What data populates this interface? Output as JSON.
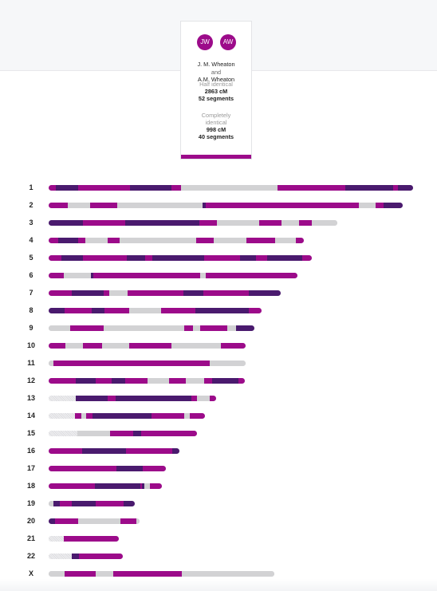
{
  "comparison": {
    "avatar_left": "JW",
    "avatar_right": "AW",
    "name_1": "J. M. Wheaton",
    "and_label": "and",
    "name_2": "A.M. Wheaton",
    "half_identical_label": "Half identical",
    "half_identical_cm": "2863 cM",
    "half_identical_segments": "52 segments",
    "completely_identical_label_line1": "Completely",
    "completely_identical_label_line2": "identical",
    "completely_identical_cm": "998 cM",
    "completely_identical_segments": "40 segments"
  },
  "colors": {
    "half_identical": "#9c0b8a",
    "completely_identical": "#4a1a6e",
    "not_identical": "#d2d2d4",
    "no_data": "#e4e4e6"
  },
  "chromosomes": [
    {
      "label": "1",
      "length": 457,
      "segments": [
        [
          "p",
          0,
          9
        ],
        [
          "d",
          9,
          37
        ],
        [
          "p",
          37,
          102
        ],
        [
          "d",
          102,
          154
        ],
        [
          "p",
          154,
          166
        ],
        [
          "g",
          166,
          287
        ],
        [
          "p",
          287,
          372
        ],
        [
          "d",
          372,
          432
        ],
        [
          "p",
          432,
          438
        ],
        [
          "d",
          438,
          457
        ]
      ]
    },
    {
      "label": "2",
      "length": 444,
      "segments": [
        [
          "p",
          0,
          24
        ],
        [
          "g",
          24,
          52
        ],
        [
          "p",
          52,
          86
        ],
        [
          "g",
          86,
          193
        ],
        [
          "d",
          193,
          197
        ],
        [
          "p",
          197,
          256
        ],
        [
          "p",
          256,
          389
        ],
        [
          "g",
          389,
          410
        ],
        [
          "p",
          410,
          420
        ],
        [
          "d",
          420,
          444
        ]
      ]
    },
    {
      "label": "3",
      "length": 362,
      "segments": [
        [
          "d",
          0,
          43
        ],
        [
          "p",
          43,
          96
        ],
        [
          "d",
          96,
          110
        ],
        [
          "d",
          110,
          189
        ],
        [
          "p",
          189,
          211
        ],
        [
          "g",
          211,
          264
        ],
        [
          "p",
          264,
          292
        ],
        [
          "g",
          292,
          314
        ],
        [
          "p",
          314,
          330
        ],
        [
          "g",
          330,
          362
        ]
      ]
    },
    {
      "label": "4",
      "length": 320,
      "segments": [
        [
          "p",
          0,
          12
        ],
        [
          "d",
          12,
          37
        ],
        [
          "p",
          37,
          46
        ],
        [
          "g",
          46,
          74
        ],
        [
          "p",
          74,
          89
        ],
        [
          "g",
          89,
          185
        ],
        [
          "p",
          185,
          207
        ],
        [
          "g",
          207,
          248
        ],
        [
          "p",
          248,
          284
        ],
        [
          "g",
          284,
          310
        ],
        [
          "p",
          310,
          320
        ]
      ]
    },
    {
      "label": "5",
      "length": 330,
      "segments": [
        [
          "p",
          0,
          16
        ],
        [
          "d",
          16,
          43
        ],
        [
          "p",
          43,
          98
        ],
        [
          "d",
          98,
          121
        ],
        [
          "p",
          121,
          130
        ],
        [
          "d",
          130,
          195
        ],
        [
          "p",
          195,
          240
        ],
        [
          "d",
          240,
          260
        ],
        [
          "p",
          260,
          274
        ],
        [
          "d",
          274,
          318
        ],
        [
          "p",
          318,
          330
        ]
      ]
    },
    {
      "label": "6",
      "length": 312,
      "segments": [
        [
          "p",
          0,
          19
        ],
        [
          "g",
          19,
          53
        ],
        [
          "d",
          53,
          56
        ],
        [
          "p",
          56,
          190
        ],
        [
          "g",
          190,
          197
        ],
        [
          "p",
          197,
          312
        ]
      ]
    },
    {
      "label": "7",
      "length": 291,
      "segments": [
        [
          "p",
          0,
          29
        ],
        [
          "d",
          29,
          69
        ],
        [
          "p",
          69,
          76
        ],
        [
          "g",
          76,
          99
        ],
        [
          "p",
          99,
          169
        ],
        [
          "d",
          169,
          194
        ],
        [
          "p",
          194,
          251
        ],
        [
          "d",
          251,
          291
        ]
      ]
    },
    {
      "label": "8",
      "length": 267,
      "segments": [
        [
          "d",
          0,
          20
        ],
        [
          "p",
          20,
          54
        ],
        [
          "d",
          54,
          70
        ],
        [
          "p",
          70,
          101
        ],
        [
          "g",
          101,
          141
        ],
        [
          "p",
          141,
          184
        ],
        [
          "d",
          184,
          251
        ],
        [
          "p",
          251,
          267
        ]
      ]
    },
    {
      "label": "9",
      "length": 258,
      "segments": [
        [
          "g",
          0,
          27
        ],
        [
          "p",
          27,
          69
        ],
        [
          "g",
          69,
          170
        ],
        [
          "p",
          170,
          181
        ],
        [
          "g",
          181,
          190
        ],
        [
          "p",
          190,
          224
        ],
        [
          "g",
          224,
          235
        ],
        [
          "d",
          235,
          258
        ]
      ]
    },
    {
      "label": "10",
      "length": 247,
      "segments": [
        [
          "p",
          0,
          21
        ],
        [
          "g",
          21,
          43
        ],
        [
          "p",
          43,
          67
        ],
        [
          "g",
          67,
          101
        ],
        [
          "p",
          101,
          154
        ],
        [
          "g",
          154,
          216
        ],
        [
          "p",
          216,
          247
        ]
      ]
    },
    {
      "label": "11",
      "length": 247,
      "segments": [
        [
          "g",
          0,
          6
        ],
        [
          "p",
          6,
          202
        ],
        [
          "g",
          202,
          247
        ]
      ]
    },
    {
      "label": "12",
      "length": 246,
      "segments": [
        [
          "p",
          0,
          34
        ],
        [
          "d",
          34,
          59
        ],
        [
          "p",
          59,
          79
        ],
        [
          "d",
          79,
          96
        ],
        [
          "p",
          96,
          124
        ],
        [
          "g",
          124,
          151
        ],
        [
          "p",
          151,
          172
        ],
        [
          "g",
          172,
          195
        ],
        [
          "p",
          195,
          205
        ],
        [
          "d",
          205,
          238
        ],
        [
          "p",
          238,
          246
        ]
      ]
    },
    {
      "label": "13",
      "length": 210,
      "segments": [
        [
          "h",
          0,
          34
        ],
        [
          "d",
          34,
          74
        ],
        [
          "p",
          74,
          84
        ],
        [
          "d",
          84,
          179
        ],
        [
          "p",
          179,
          186
        ],
        [
          "g",
          186,
          202
        ],
        [
          "p",
          202,
          210
        ]
      ]
    },
    {
      "label": "14",
      "length": 196,
      "segments": [
        [
          "h",
          0,
          33
        ],
        [
          "p",
          33,
          41
        ],
        [
          "g",
          41,
          47
        ],
        [
          "p",
          47,
          55
        ],
        [
          "d",
          55,
          129
        ],
        [
          "p",
          129,
          170
        ],
        [
          "g",
          170,
          177
        ],
        [
          "p",
          177,
          196
        ]
      ]
    },
    {
      "label": "15",
      "length": 186,
      "segments": [
        [
          "h",
          0,
          36
        ],
        [
          "g",
          36,
          77
        ],
        [
          "p",
          77,
          106
        ],
        [
          "d",
          106,
          116
        ],
        [
          "p",
          116,
          186
        ]
      ]
    },
    {
      "label": "16",
      "length": 164,
      "segments": [
        [
          "p",
          0,
          42
        ],
        [
          "d",
          42,
          97
        ],
        [
          "p",
          97,
          155
        ],
        [
          "d",
          155,
          164
        ]
      ]
    },
    {
      "label": "17",
      "length": 147,
      "segments": [
        [
          "p",
          0,
          85
        ],
        [
          "d",
          85,
          118
        ],
        [
          "p",
          118,
          147
        ]
      ]
    },
    {
      "label": "18",
      "length": 142,
      "segments": [
        [
          "p",
          0,
          58
        ],
        [
          "d",
          58,
          115
        ],
        [
          "p",
          115,
          117
        ],
        [
          "d",
          117,
          120
        ],
        [
          "g",
          120,
          127
        ],
        [
          "p",
          127,
          142
        ]
      ]
    },
    {
      "label": "19",
      "length": 108,
      "segments": [
        [
          "g",
          0,
          6
        ],
        [
          "d",
          6,
          14
        ],
        [
          "p",
          14,
          29
        ],
        [
          "d",
          29,
          59
        ],
        [
          "p",
          59,
          94
        ],
        [
          "d",
          94,
          108
        ]
      ]
    },
    {
      "label": "20",
      "length": 114,
      "segments": [
        [
          "d",
          0,
          8
        ],
        [
          "p",
          8,
          37
        ],
        [
          "g",
          37,
          90
        ],
        [
          "p",
          90,
          110
        ],
        [
          "g",
          110,
          114
        ]
      ]
    },
    {
      "label": "21",
      "length": 88,
      "segments": [
        [
          "h",
          0,
          19
        ],
        [
          "p",
          19,
          88
        ]
      ]
    },
    {
      "label": "22",
      "length": 93,
      "segments": [
        [
          "h",
          0,
          29
        ],
        [
          "d",
          29,
          38
        ],
        [
          "p",
          38,
          93
        ]
      ]
    },
    {
      "label": "X",
      "length": 283,
      "segments": [
        [
          "g",
          0,
          20
        ],
        [
          "p",
          20,
          59
        ],
        [
          "g",
          59,
          81
        ],
        [
          "p",
          81,
          167
        ],
        [
          "g",
          167,
          283
        ]
      ]
    }
  ]
}
